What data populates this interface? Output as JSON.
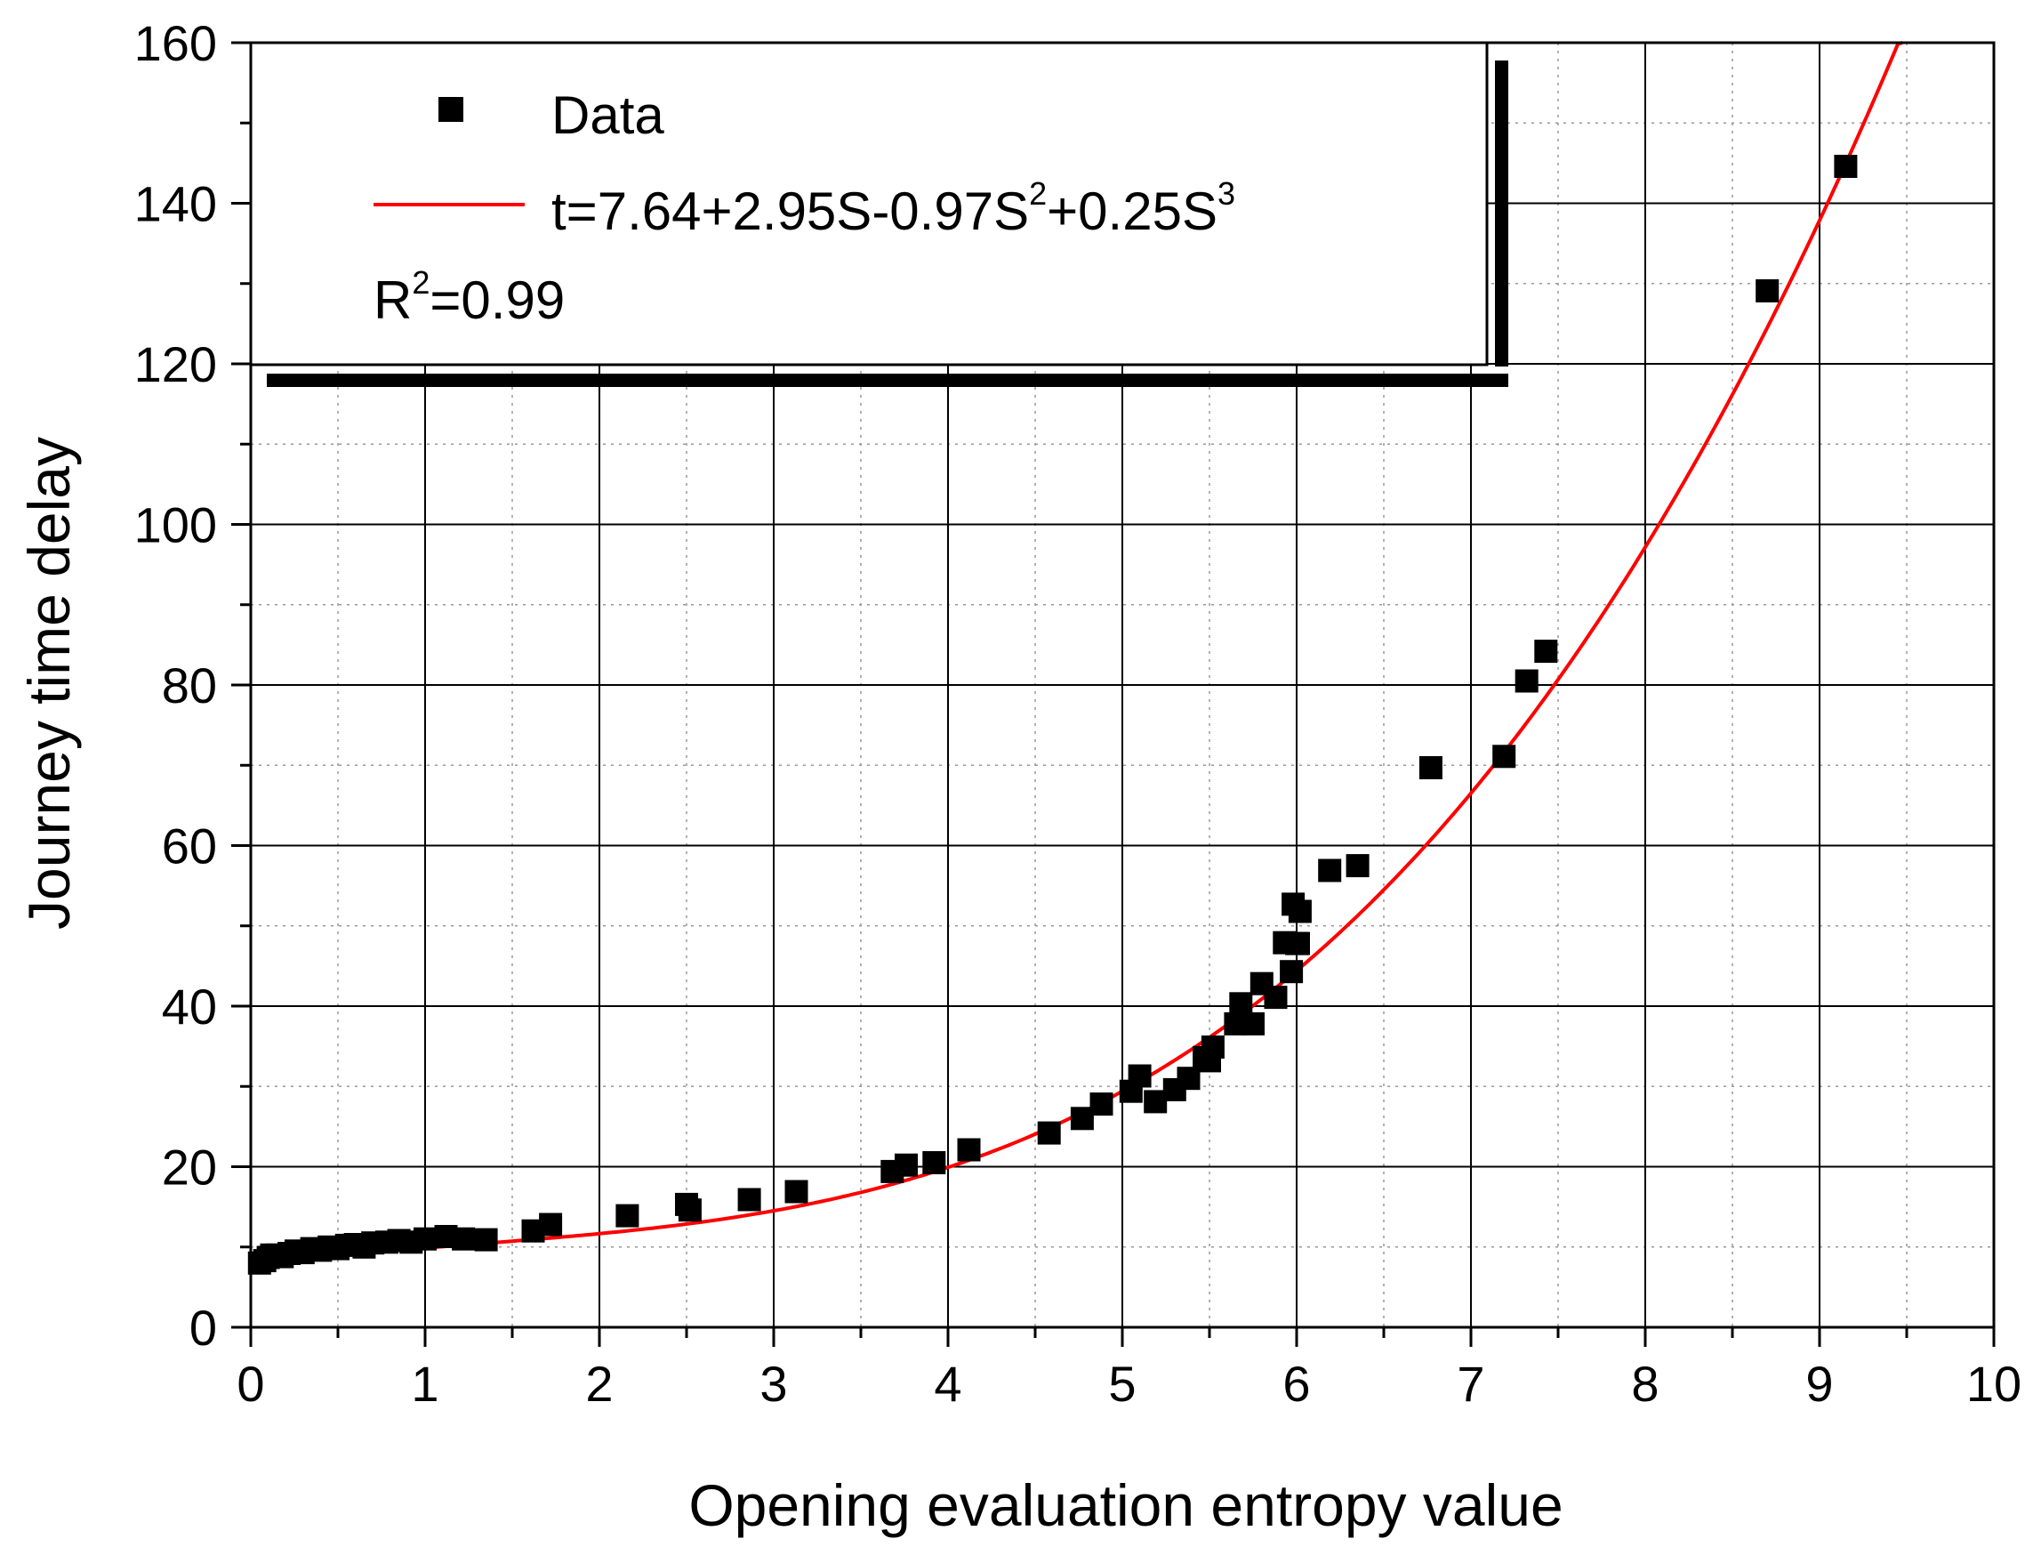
{
  "chart_data": {
    "type": "scatter",
    "title": "",
    "xlabel": "Opening evaluation entropy value",
    "ylabel": "Journey time delay",
    "xlim": [
      0,
      10
    ],
    "ylim": [
      0,
      160
    ],
    "x_ticks": [
      "0",
      "1",
      "2",
      "3",
      "4",
      "5",
      "6",
      "7",
      "8",
      "9",
      "10"
    ],
    "y_ticks": [
      "0",
      "20",
      "40",
      "60",
      "80",
      "100",
      "120",
      "140",
      "160"
    ],
    "grid": true,
    "legend_position": "top-left",
    "series": [
      {
        "name": "Data",
        "marker": "square",
        "color": "#000000",
        "x": [
          0.05,
          0.08,
          0.1,
          0.12,
          0.15,
          0.18,
          0.22,
          0.26,
          0.3,
          0.35,
          0.4,
          0.45,
          0.5,
          0.55,
          0.6,
          0.65,
          0.7,
          0.78,
          0.85,
          0.92,
          1.0,
          1.12,
          1.22,
          1.35,
          1.62,
          1.72,
          2.16,
          2.5,
          2.52,
          2.86,
          3.13,
          3.68,
          3.76,
          3.92,
          4.12,
          4.58,
          4.77,
          4.88,
          5.05,
          5.1,
          5.19,
          5.3,
          5.38,
          5.47,
          5.5,
          5.52,
          5.65,
          5.68,
          5.75,
          5.8,
          5.88,
          5.93,
          5.97,
          5.98,
          6.0,
          6.01,
          6.02,
          6.19,
          6.35,
          6.77,
          7.19,
          7.32,
          7.43,
          8.7,
          9.15
        ],
        "y": [
          8.0,
          8.3,
          8.7,
          9.0,
          9.0,
          8.8,
          9.2,
          9.5,
          9.3,
          9.8,
          9.6,
          10.0,
          9.8,
          10.2,
          10.3,
          10.0,
          10.5,
          10.6,
          10.8,
          10.6,
          11.0,
          11.3,
          11.0,
          10.9,
          12.0,
          12.8,
          13.9,
          15.3,
          14.6,
          15.9,
          16.9,
          19.4,
          20.2,
          20.5,
          22.1,
          24.2,
          26.0,
          27.8,
          29.4,
          31.3,
          28.1,
          29.6,
          31.0,
          33.6,
          33.2,
          34.9,
          37.8,
          40.3,
          37.8,
          42.8,
          41.1,
          47.9,
          44.3,
          52.7,
          47.8,
          47.8,
          51.8,
          56.9,
          57.5,
          69.7,
          71.1,
          80.5,
          84.2,
          129.1,
          144.6
        ]
      },
      {
        "name": "t=7.64+2.95S-0.97S²+0.25S³",
        "type": "line",
        "color": "#ff0000",
        "equation": {
          "c0": 7.64,
          "c1": 2.95,
          "c2": -0.97,
          "c3": 0.25
        },
        "x_range": [
          0,
          10
        ]
      }
    ],
    "legend": {
      "entries": [
        {
          "label": "Data",
          "symbol": "square"
        },
        {
          "label_main": "t=7.64+2.95S-0.97S",
          "sup1": "2",
          "label_mid": "+0.25S",
          "sup2": "3",
          "symbol": "line"
        }
      ],
      "r2_label_main": "R",
      "r2_sup": "2",
      "r2_value": "=0.99"
    }
  }
}
